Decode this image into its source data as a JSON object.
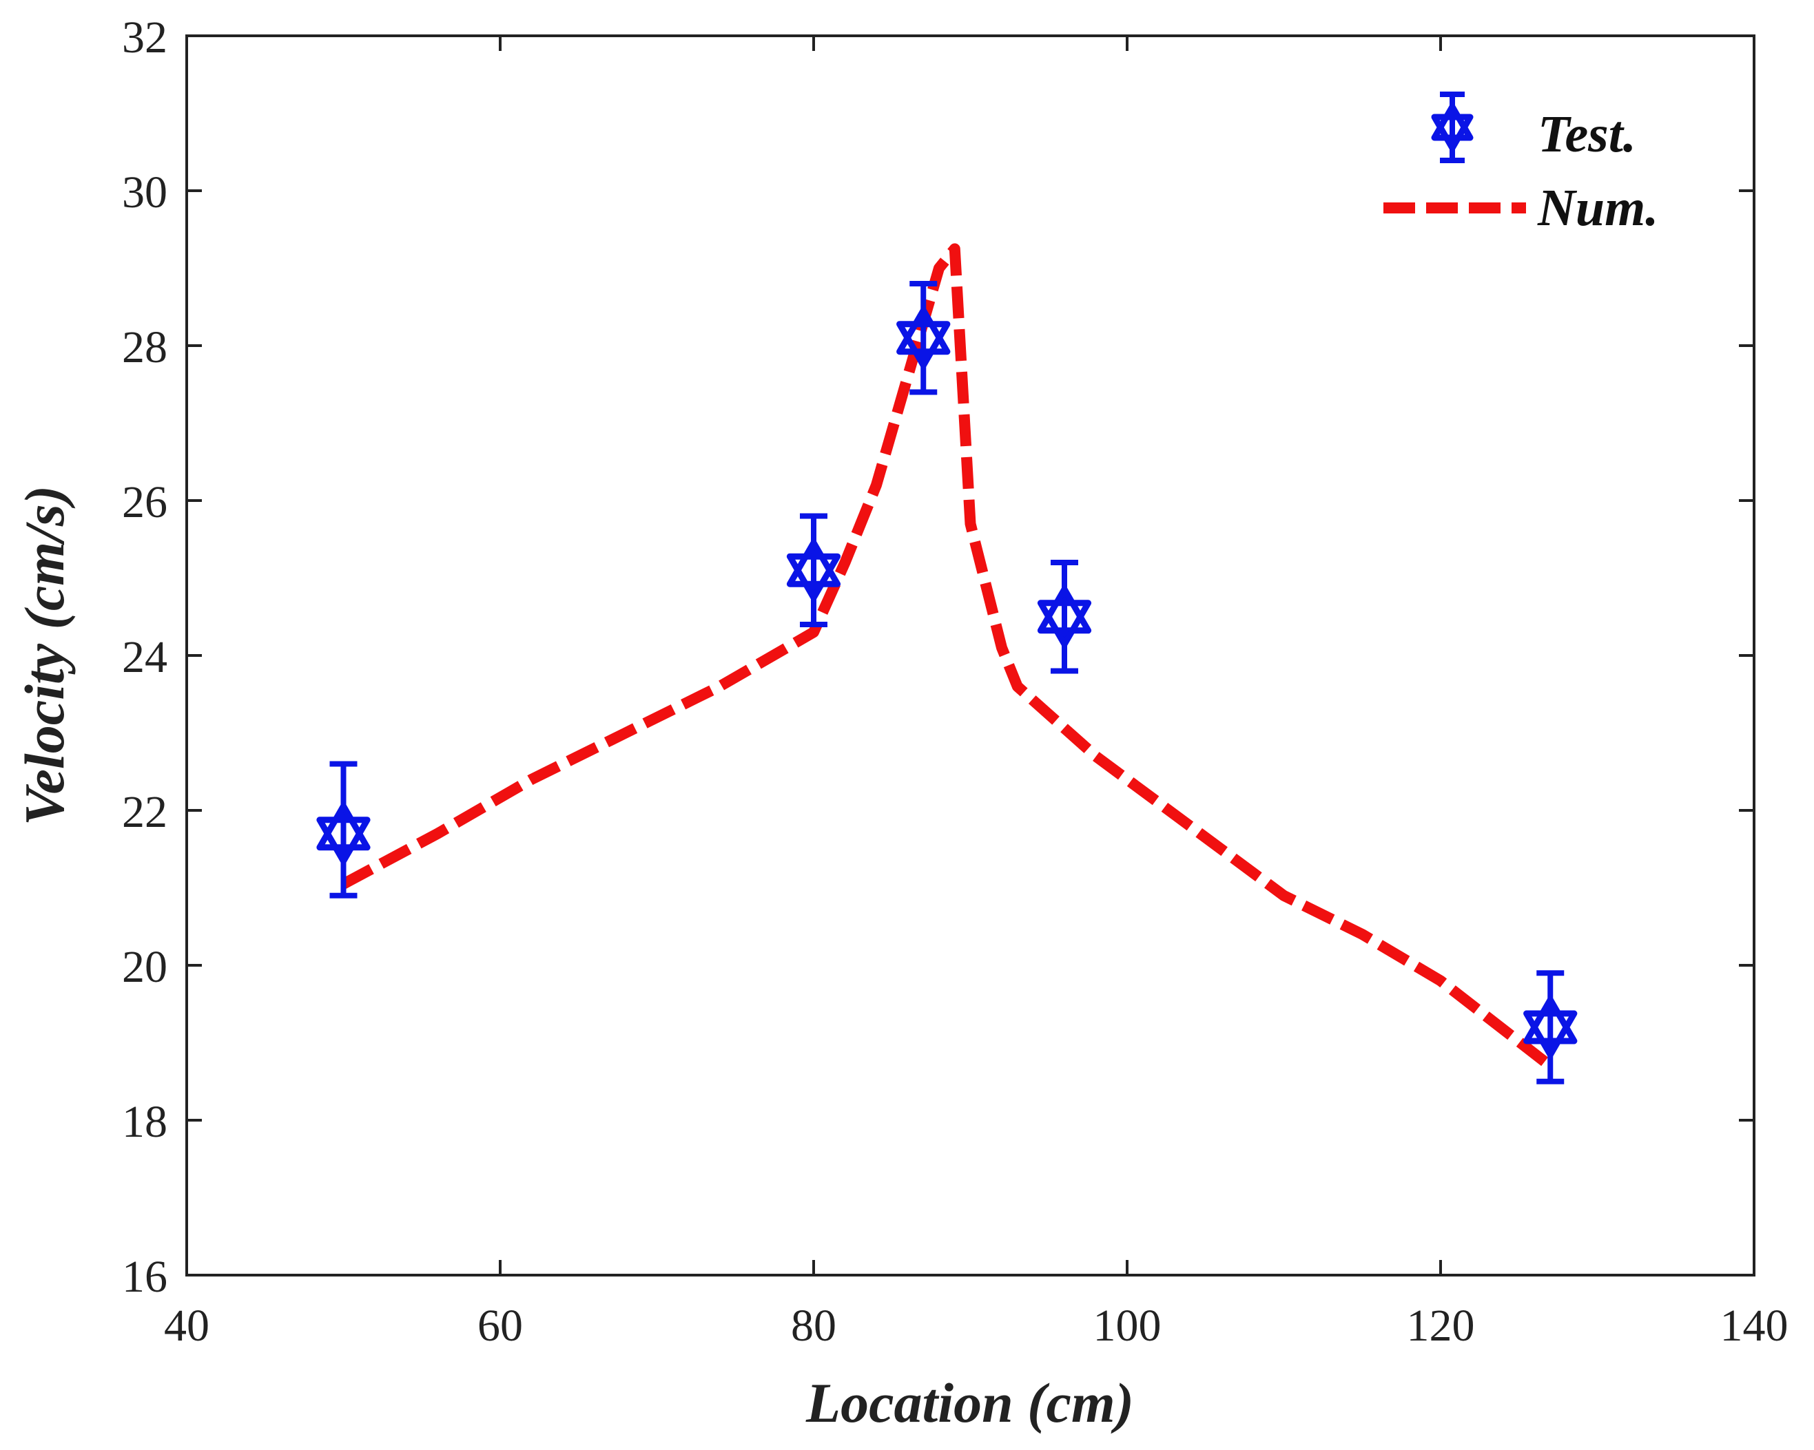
{
  "chart_data": {
    "type": "line",
    "title": "",
    "xlabel": "Location (cm)",
    "ylabel": "Velocity (cm/s)",
    "xlim": [
      40,
      140
    ],
    "ylim": [
      16,
      32
    ],
    "xticks": [
      40,
      60,
      80,
      100,
      120,
      140
    ],
    "yticks": [
      16,
      18,
      20,
      22,
      24,
      26,
      28,
      30,
      32
    ],
    "grid": false,
    "legend_position": "top-right",
    "series": [
      {
        "name": "Test.",
        "kind": "errorbar-scatter",
        "marker": "star",
        "color": "#0a14e6",
        "x": [
          50,
          80,
          87,
          96,
          127
        ],
        "y": [
          21.7,
          25.1,
          28.1,
          24.5,
          19.2
        ],
        "yerr_low": [
          0.8,
          0.7,
          0.7,
          0.7,
          0.7
        ],
        "yerr_high": [
          0.9,
          0.7,
          0.7,
          0.7,
          0.7
        ]
      },
      {
        "name": "Num.",
        "kind": "dashed-line",
        "color": "#f01010",
        "x": [
          50,
          56,
          62,
          68,
          74,
          80,
          82,
          84,
          86,
          88,
          89,
          90,
          92,
          93,
          98,
          104,
          110,
          115,
          120,
          127
        ],
        "y": [
          21.05,
          21.7,
          22.4,
          23.0,
          23.6,
          24.3,
          25.2,
          26.2,
          27.6,
          29.0,
          29.25,
          25.7,
          24.1,
          23.6,
          22.7,
          21.8,
          20.9,
          20.4,
          19.8,
          18.7
        ]
      }
    ]
  }
}
